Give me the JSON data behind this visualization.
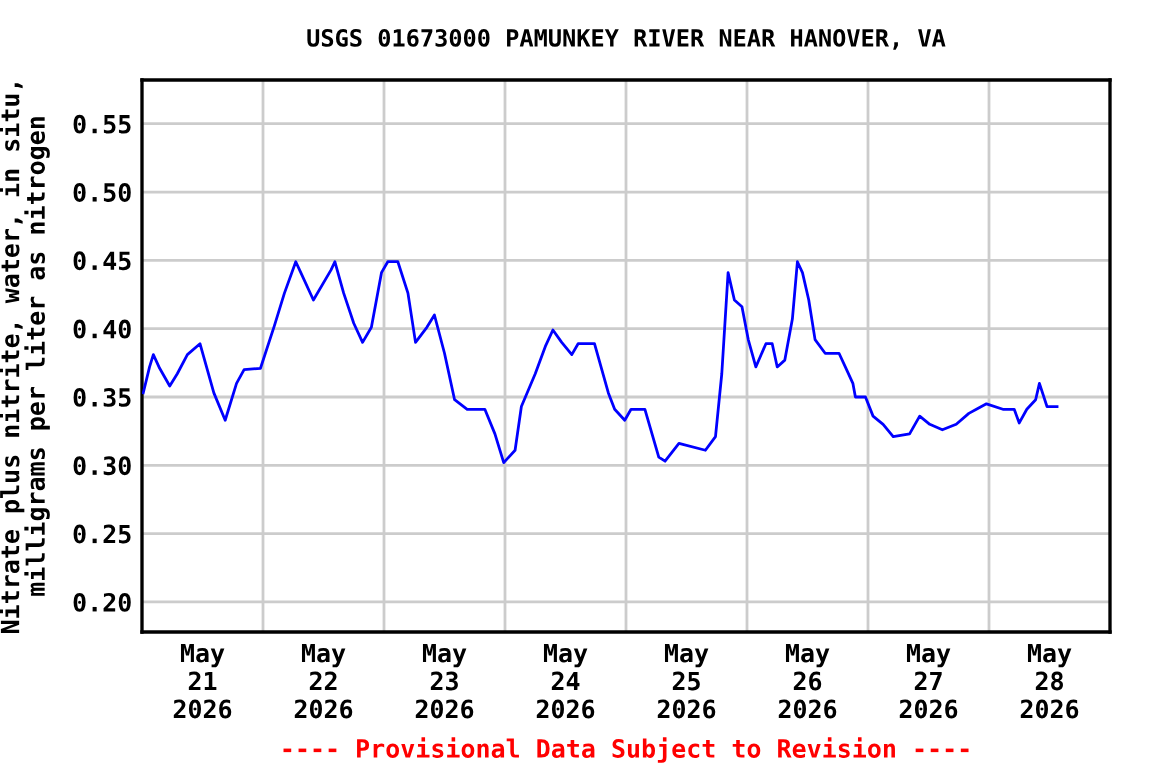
{
  "chart_data": {
    "type": "line",
    "title": "USGS 01673000 PAMUNKEY RIVER NEAR HANOVER, VA",
    "ylabel": "Nitrate plus nitrite, water, in situ,\nmilligrams per liter as nitrogen",
    "annotations": [
      "---- Provisional Data Subject to Revision ----"
    ],
    "series": [
      {
        "color": "#0000ff",
        "x": [
          "2026-05-21T00:15",
          "2026-05-21T01:30",
          "2026-05-21T02:15",
          "2026-05-21T03:30",
          "2026-05-21T05:30",
          "2026-05-21T07:00",
          "2026-05-21T09:00",
          "2026-05-21T11:30",
          "2026-05-21T14:15",
          "2026-05-21T16:30",
          "2026-05-21T18:45",
          "2026-05-21T20:15",
          "2026-05-21T23:30",
          "2026-05-22T02:15",
          "2026-05-22T04:15",
          "2026-05-22T06:30",
          "2026-05-22T07:30",
          "2026-05-22T10:00",
          "2026-05-22T13:30",
          "2026-05-22T14:15",
          "2026-05-22T16:00",
          "2026-05-22T18:00",
          "2026-05-22T19:45",
          "2026-05-22T21:30",
          "2026-05-22T23:30",
          "2026-05-23T00:45",
          "2026-05-23T02:45",
          "2026-05-23T04:45",
          "2026-05-23T06:15",
          "2026-05-23T08:30",
          "2026-05-23T10:00",
          "2026-05-23T12:00",
          "2026-05-23T14:00",
          "2026-05-23T16:30",
          "2026-05-23T20:00",
          "2026-05-23T22:00",
          "2026-05-23T23:45",
          "2026-05-24T02:00",
          "2026-05-24T03:15",
          "2026-05-24T06:00",
          "2026-05-24T08:00",
          "2026-05-24T09:30",
          "2026-05-24T11:15",
          "2026-05-24T13:15",
          "2026-05-24T14:30",
          "2026-05-24T17:45",
          "2026-05-24T20:30",
          "2026-05-24T21:45",
          "2026-05-24T23:45",
          "2026-05-25T01:00",
          "2026-05-25T03:45",
          "2026-05-25T06:30",
          "2026-05-25T07:45",
          "2026-05-25T10:30",
          "2026-05-25T15:45",
          "2026-05-25T17:45",
          "2026-05-25T19:00",
          "2026-05-25T20:15",
          "2026-05-25T21:30",
          "2026-05-25T23:00",
          "2026-05-26T00:15",
          "2026-05-26T01:45",
          "2026-05-26T03:45",
          "2026-05-26T05:00",
          "2026-05-26T06:00",
          "2026-05-26T07:30",
          "2026-05-26T09:00",
          "2026-05-26T10:00",
          "2026-05-26T11:00",
          "2026-05-26T12:15",
          "2026-05-26T13:30",
          "2026-05-26T15:30",
          "2026-05-26T18:15",
          "2026-05-26T19:30",
          "2026-05-26T21:00",
          "2026-05-26T21:30",
          "2026-05-26T23:30",
          "2026-05-27T01:00",
          "2026-05-27T03:00",
          "2026-05-27T05:00",
          "2026-05-27T08:15",
          "2026-05-27T10:15",
          "2026-05-27T12:15",
          "2026-05-27T14:45",
          "2026-05-27T17:30",
          "2026-05-27T20:00",
          "2026-05-27T21:30",
          "2026-05-27T23:30",
          "2026-05-28T02:45",
          "2026-05-28T05:00",
          "2026-05-28T06:00",
          "2026-05-28T07:30",
          "2026-05-28T09:15",
          "2026-05-28T10:00",
          "2026-05-28T11:30",
          "2026-05-28T13:30"
        ],
        "values": [
          0.353,
          0.372,
          0.381,
          0.371,
          0.358,
          0.367,
          0.381,
          0.389,
          0.353,
          0.333,
          0.36,
          0.37,
          0.371,
          0.402,
          0.426,
          0.449,
          0.441,
          0.421,
          0.443,
          0.449,
          0.426,
          0.404,
          0.39,
          0.401,
          0.441,
          0.449,
          0.449,
          0.426,
          0.39,
          0.401,
          0.41,
          0.382,
          0.348,
          0.341,
          0.341,
          0.323,
          0.302,
          0.311,
          0.343,
          0.367,
          0.387,
          0.399,
          0.39,
          0.381,
          0.389,
          0.389,
          0.353,
          0.341,
          0.333,
          0.341,
          0.341,
          0.306,
          0.303,
          0.316,
          0.311,
          0.321,
          0.367,
          0.441,
          0.421,
          0.416,
          0.392,
          0.372,
          0.389,
          0.389,
          0.372,
          0.377,
          0.407,
          0.449,
          0.441,
          0.421,
          0.392,
          0.382,
          0.382,
          0.372,
          0.36,
          0.35,
          0.35,
          0.336,
          0.33,
          0.321,
          0.323,
          0.336,
          0.33,
          0.326,
          0.33,
          0.338,
          0.341,
          0.345,
          0.341,
          0.341,
          0.331,
          0.341,
          0.348,
          0.36,
          0.343,
          0.343
        ]
      }
    ],
    "xlim": [
      "2026-05-21T00:00",
      "2026-05-29T00:00"
    ],
    "xticks": [
      {
        "value": "2026-05-21T12:00",
        "label": "May\n21\n2026"
      },
      {
        "value": "2026-05-22T12:00",
        "label": "May\n22\n2026"
      },
      {
        "value": "2026-05-23T12:00",
        "label": "May\n23\n2026"
      },
      {
        "value": "2026-05-24T12:00",
        "label": "May\n24\n2026"
      },
      {
        "value": "2026-05-25T12:00",
        "label": "May\n25\n2026"
      },
      {
        "value": "2026-05-26T12:00",
        "label": "May\n26\n2026"
      },
      {
        "value": "2026-05-27T12:00",
        "label": "May\n27\n2026"
      },
      {
        "value": "2026-05-28T12:00",
        "label": "May\n28\n2026"
      },
      {
        "value": "2026-05-22T00:00",
        "label": null
      },
      {
        "value": "2026-05-23T00:00",
        "label": null
      },
      {
        "value": "2026-05-24T00:00",
        "label": null
      },
      {
        "value": "2026-05-25T00:00",
        "label": null
      },
      {
        "value": "2026-05-26T00:00",
        "label": null
      },
      {
        "value": "2026-05-27T00:00",
        "label": null
      },
      {
        "value": "2026-05-28T00:00",
        "label": null
      }
    ],
    "ylim": [
      0.178,
      0.582
    ],
    "yticks": [
      {
        "value": 0.2,
        "label": "0.20"
      },
      0.25,
      {
        "value": 0.3,
        "label": "0.30"
      },
      0.35,
      {
        "value": 0.4,
        "label": "0.40"
      },
      0.45,
      {
        "value": 0.5,
        "label": "0.50"
      },
      0.55
    ],
    "grid": true
  }
}
